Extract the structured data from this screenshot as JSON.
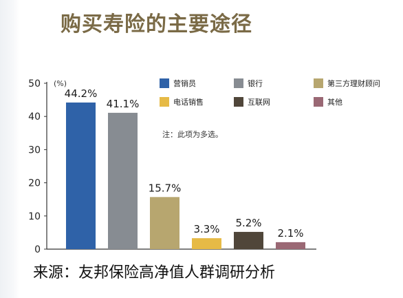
{
  "title": "购买寿险的主要途径",
  "source": "来源：友邦保险高净值人群调研分析",
  "note": "注：此项为多选。",
  "unit": "(%)",
  "colors": {
    "营销员": "#2f62a8",
    "银行": "#878c92",
    "第三方理财顾问": "#b7a66f",
    "电话销售": "#e6ba46",
    "互联网": "#50463a",
    "其他": "#9a6874",
    "title": "#7a6a46",
    "axis": "#333333"
  },
  "chart_data": {
    "type": "bar",
    "title": "购买寿险的主要途径",
    "ylabel": "(%)",
    "xlabel": "",
    "ylim": [
      0,
      50
    ],
    "yticks": [
      0,
      10,
      20,
      30,
      40,
      50
    ],
    "grid": false,
    "legend": "top-right",
    "categories": [
      "营销员",
      "银行",
      "第三方理财顾问",
      "电话销售",
      "互联网",
      "其他"
    ],
    "values": [
      44.2,
      41.1,
      15.7,
      3.3,
      5.2,
      2.1
    ],
    "value_labels": [
      "44.2%",
      "41.1%",
      "15.7%",
      "3.3%",
      "5.2%",
      "2.1%"
    ],
    "legend_items": [
      "营销员",
      "银行",
      "第三方理财顾问",
      "电话销售",
      "互联网",
      "其他"
    ]
  }
}
